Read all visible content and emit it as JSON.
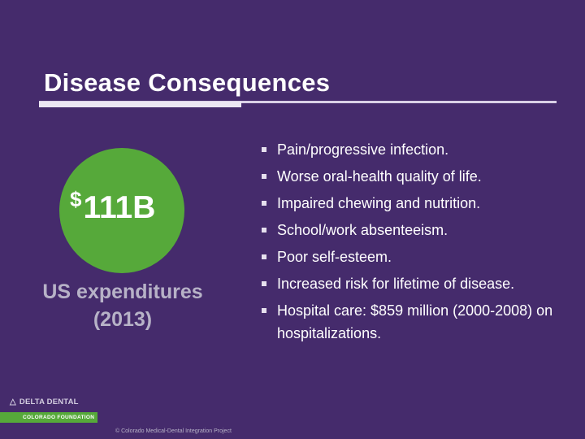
{
  "slide": {
    "title": "Disease Consequences",
    "stat": {
      "currency": "$",
      "amount": "111B",
      "label_line1": "US expenditures",
      "label_line2": "(2013)"
    },
    "bullets": [
      "Pain/progressive infection.",
      "Worse oral-health quality of life.",
      "Impaired chewing and nutrition.",
      "School/work absenteeism.",
      "Poor self-esteem.",
      "Increased risk for lifetime of disease.",
      "Hospital care: $859 million (2000-2008) on hospitalizations."
    ],
    "logo": {
      "name": "DELTA DENTAL",
      "foundation": "COLORADO FOUNDATION",
      "icon": "delta-triangle-icon"
    },
    "footer": "© Colorado Medical-Dental Integration Project"
  },
  "colors": {
    "background": "#452b6c",
    "accent_green": "#56a93a",
    "muted_text": "#b7b2c7"
  }
}
